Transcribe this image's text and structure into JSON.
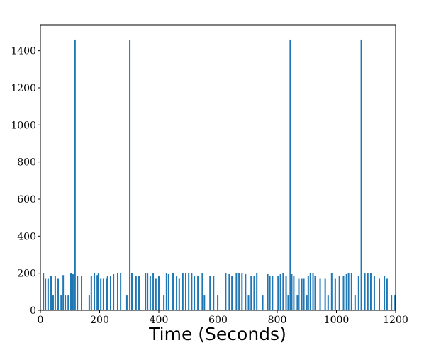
{
  "chart_data": {
    "type": "bar",
    "x_label": "Time (Seconds)",
    "color": "#1f77b4",
    "xlim": [
      0,
      1200
    ],
    "xticks": [
      0,
      200,
      400,
      600,
      800,
      1000,
      1200
    ],
    "ylim": [
      0,
      1540
    ],
    "yticks": [
      0,
      200,
      400,
      600,
      800,
      1000,
      1200,
      1400
    ],
    "x": [
      10,
      17,
      26,
      36,
      43,
      50,
      60,
      70,
      77,
      84,
      94,
      103,
      110,
      117,
      125,
      139,
      165,
      172,
      182,
      192,
      196,
      204,
      213,
      223,
      227,
      237,
      247,
      261,
      271,
      292,
      302,
      309,
      323,
      333,
      355,
      362,
      371,
      381,
      390,
      400,
      417,
      426,
      433,
      448,
      460,
      469,
      481,
      491,
      501,
      511,
      520,
      532,
      547,
      554,
      573,
      585,
      599,
      626,
      638,
      647,
      662,
      671,
      681,
      693,
      703,
      712,
      722,
      731,
      751,
      768,
      775,
      784,
      803,
      811,
      820,
      830,
      837,
      844,
      849,
      856,
      868,
      873,
      883,
      890,
      900,
      905,
      912,
      921,
      928,
      945,
      962,
      972,
      984,
      996,
      1010,
      1024,
      1034,
      1041,
      1051,
      1063,
      1075,
      1084,
      1096,
      1106,
      1116,
      1128,
      1145,
      1162,
      1171,
      1186,
      1198
    ],
    "values": [
      200,
      170,
      170,
      185,
      80,
      185,
      170,
      80,
      190,
      80,
      80,
      200,
      195,
      1460,
      185,
      185,
      80,
      185,
      200,
      190,
      200,
      170,
      170,
      170,
      185,
      185,
      195,
      200,
      200,
      80,
      1460,
      200,
      185,
      185,
      200,
      200,
      185,
      200,
      170,
      185,
      80,
      200,
      195,
      200,
      185,
      170,
      200,
      200,
      200,
      200,
      185,
      185,
      200,
      80,
      185,
      185,
      80,
      200,
      195,
      185,
      200,
      200,
      200,
      195,
      80,
      185,
      185,
      200,
      80,
      195,
      185,
      185,
      185,
      195,
      200,
      185,
      80,
      1460,
      195,
      185,
      80,
      170,
      170,
      170,
      80,
      185,
      200,
      200,
      185,
      170,
      170,
      80,
      200,
      170,
      185,
      185,
      195,
      200,
      200,
      80,
      185,
      1460,
      200,
      200,
      200,
      185,
      170,
      185,
      170,
      80,
      80
    ]
  }
}
